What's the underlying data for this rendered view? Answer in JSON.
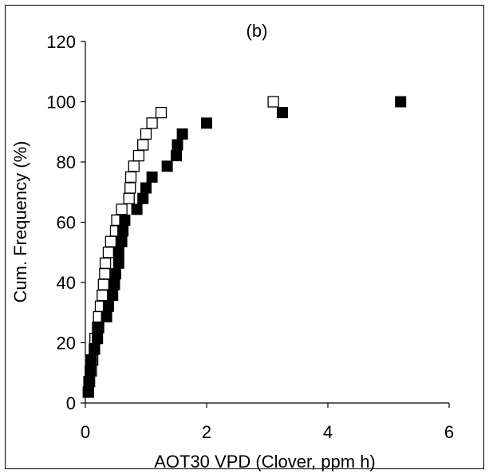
{
  "chart_data": {
    "type": "scatter",
    "title": "(b)",
    "xlabel": "AOT30 VPD (Clover, ppm h)",
    "ylabel": "Cum. Frequency (%)",
    "xlim": [
      0,
      6
    ],
    "ylim": [
      0,
      120
    ],
    "xticks": [
      "0",
      "2",
      "4",
      "6"
    ],
    "yticks": [
      "0",
      "20",
      "40",
      "60",
      "80",
      "100",
      "120"
    ],
    "grid": false,
    "legend": "none",
    "series": [
      {
        "marker": "open-square",
        "color": "#000000",
        "points": [
          [
            0.05,
            3.6
          ],
          [
            0.06,
            7.1
          ],
          [
            0.1,
            10.7
          ],
          [
            0.12,
            14.3
          ],
          [
            0.15,
            17.9
          ],
          [
            0.16,
            21.4
          ],
          [
            0.2,
            25.0
          ],
          [
            0.22,
            28.6
          ],
          [
            0.25,
            32.1
          ],
          [
            0.28,
            35.7
          ],
          [
            0.3,
            39.3
          ],
          [
            0.32,
            42.9
          ],
          [
            0.33,
            46.4
          ],
          [
            0.38,
            50.0
          ],
          [
            0.42,
            53.6
          ],
          [
            0.5,
            57.1
          ],
          [
            0.52,
            60.7
          ],
          [
            0.6,
            64.3
          ],
          [
            0.72,
            67.9
          ],
          [
            0.74,
            71.4
          ],
          [
            0.75,
            75.0
          ],
          [
            0.8,
            78.6
          ],
          [
            0.88,
            82.1
          ],
          [
            0.95,
            85.7
          ],
          [
            1.0,
            89.3
          ],
          [
            1.1,
            92.9
          ],
          [
            1.25,
            96.4
          ],
          [
            3.1,
            100.0
          ]
        ]
      },
      {
        "marker": "filled-square",
        "color": "#000000",
        "points": [
          [
            0.05,
            3.6
          ],
          [
            0.07,
            7.1
          ],
          [
            0.08,
            10.7
          ],
          [
            0.1,
            14.3
          ],
          [
            0.15,
            17.9
          ],
          [
            0.2,
            21.4
          ],
          [
            0.22,
            25.0
          ],
          [
            0.35,
            28.6
          ],
          [
            0.38,
            32.1
          ],
          [
            0.45,
            35.7
          ],
          [
            0.48,
            39.3
          ],
          [
            0.5,
            42.9
          ],
          [
            0.55,
            46.4
          ],
          [
            0.55,
            50.0
          ],
          [
            0.6,
            53.6
          ],
          [
            0.62,
            57.1
          ],
          [
            0.65,
            60.7
          ],
          [
            0.85,
            64.3
          ],
          [
            0.95,
            67.9
          ],
          [
            1.0,
            71.4
          ],
          [
            1.1,
            75.0
          ],
          [
            1.35,
            78.6
          ],
          [
            1.5,
            82.1
          ],
          [
            1.52,
            85.7
          ],
          [
            1.6,
            89.3
          ],
          [
            2.0,
            92.9
          ],
          [
            3.25,
            96.4
          ],
          [
            5.2,
            100.0
          ]
        ]
      }
    ]
  }
}
